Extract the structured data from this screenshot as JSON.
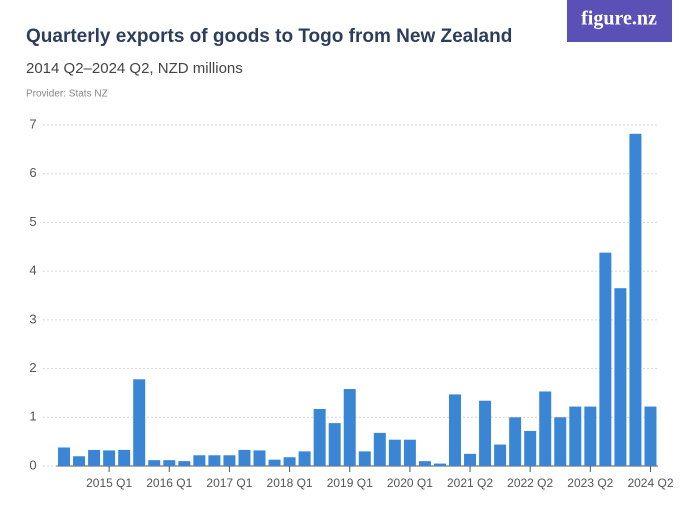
{
  "logo": "figure.nz",
  "chart_data": {
    "type": "bar",
    "title": "Quarterly exports of goods to Togo from New Zealand",
    "subtitle": "2014 Q2–2024 Q2, NZD millions",
    "provider": "Provider: Stats NZ",
    "categories": [
      null,
      null,
      null,
      "2015 Q1",
      null,
      null,
      null,
      "2016 Q1",
      null,
      null,
      null,
      "2017 Q1",
      null,
      null,
      null,
      "2018 Q1",
      null,
      null,
      null,
      "2019 Q1",
      null,
      null,
      null,
      "2020 Q1",
      null,
      null,
      null,
      "2021 Q2",
      null,
      null,
      null,
      "2022 Q2",
      null,
      null,
      null,
      "2023 Q2",
      null,
      null,
      null,
      "2024 Q2"
    ],
    "values": [
      0.38,
      0.2,
      0.33,
      0.32,
      0.33,
      1.78,
      0.12,
      0.12,
      0.1,
      0.22,
      0.22,
      0.22,
      0.33,
      0.32,
      0.13,
      0.18,
      0.3,
      1.17,
      0.88,
      1.58,
      0.3,
      0.68,
      0.54,
      0.54,
      0.1,
      0.05,
      1.47,
      0.25,
      1.34,
      0.44,
      1.0,
      0.72,
      1.53,
      1.0,
      1.22,
      1.22,
      4.38,
      3.65,
      6.82,
      1.22
    ],
    "color": "#3b86d4",
    "ylim": [
      0,
      7
    ],
    "yticks": [
      0,
      1,
      2,
      3,
      4,
      5,
      6,
      7
    ],
    "grid": true
  }
}
